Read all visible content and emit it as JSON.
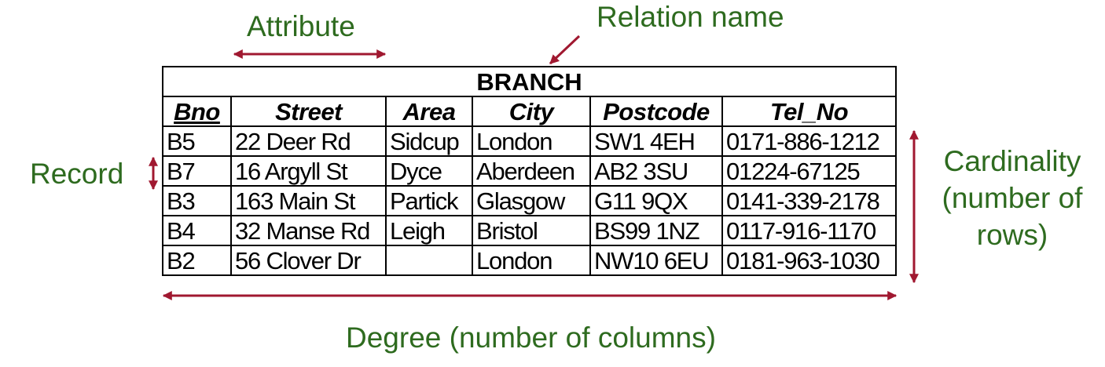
{
  "labels": {
    "attribute": "Attribute",
    "relation_name": "Relation name",
    "record": "Record",
    "cardinality_lines": [
      "Cardinality",
      "(number of",
      "rows)"
    ],
    "degree": "Degree (number of columns)"
  },
  "relation": {
    "name": "BRANCH",
    "columns": [
      "Bno",
      "Street",
      "Area",
      "City",
      "Postcode",
      "Tel_No"
    ],
    "key_column": "Bno",
    "rows": [
      [
        "B5",
        "22 Deer Rd",
        "Sidcup",
        "London",
        "SW1 4EH",
        "0171-886-1212"
      ],
      [
        "B7",
        "16 Argyll St",
        "Dyce",
        "Aberdeen",
        "AB2 3SU",
        "01224-67125"
      ],
      [
        "B3",
        "163 Main St",
        "Partick",
        "Glasgow",
        "G11 9QX",
        "0141-339-2178"
      ],
      [
        "B4",
        "32 Manse Rd",
        "Leigh",
        "Bristol",
        "BS99 1NZ",
        "0117-916-1170"
      ],
      [
        "B2",
        "56 Clover Dr",
        "",
        "London",
        "NW10 6EU",
        "0181-963-1030"
      ]
    ]
  },
  "colors": {
    "label_text": "#2e6b1f",
    "arrow": "#a01830",
    "border": "#000000"
  }
}
